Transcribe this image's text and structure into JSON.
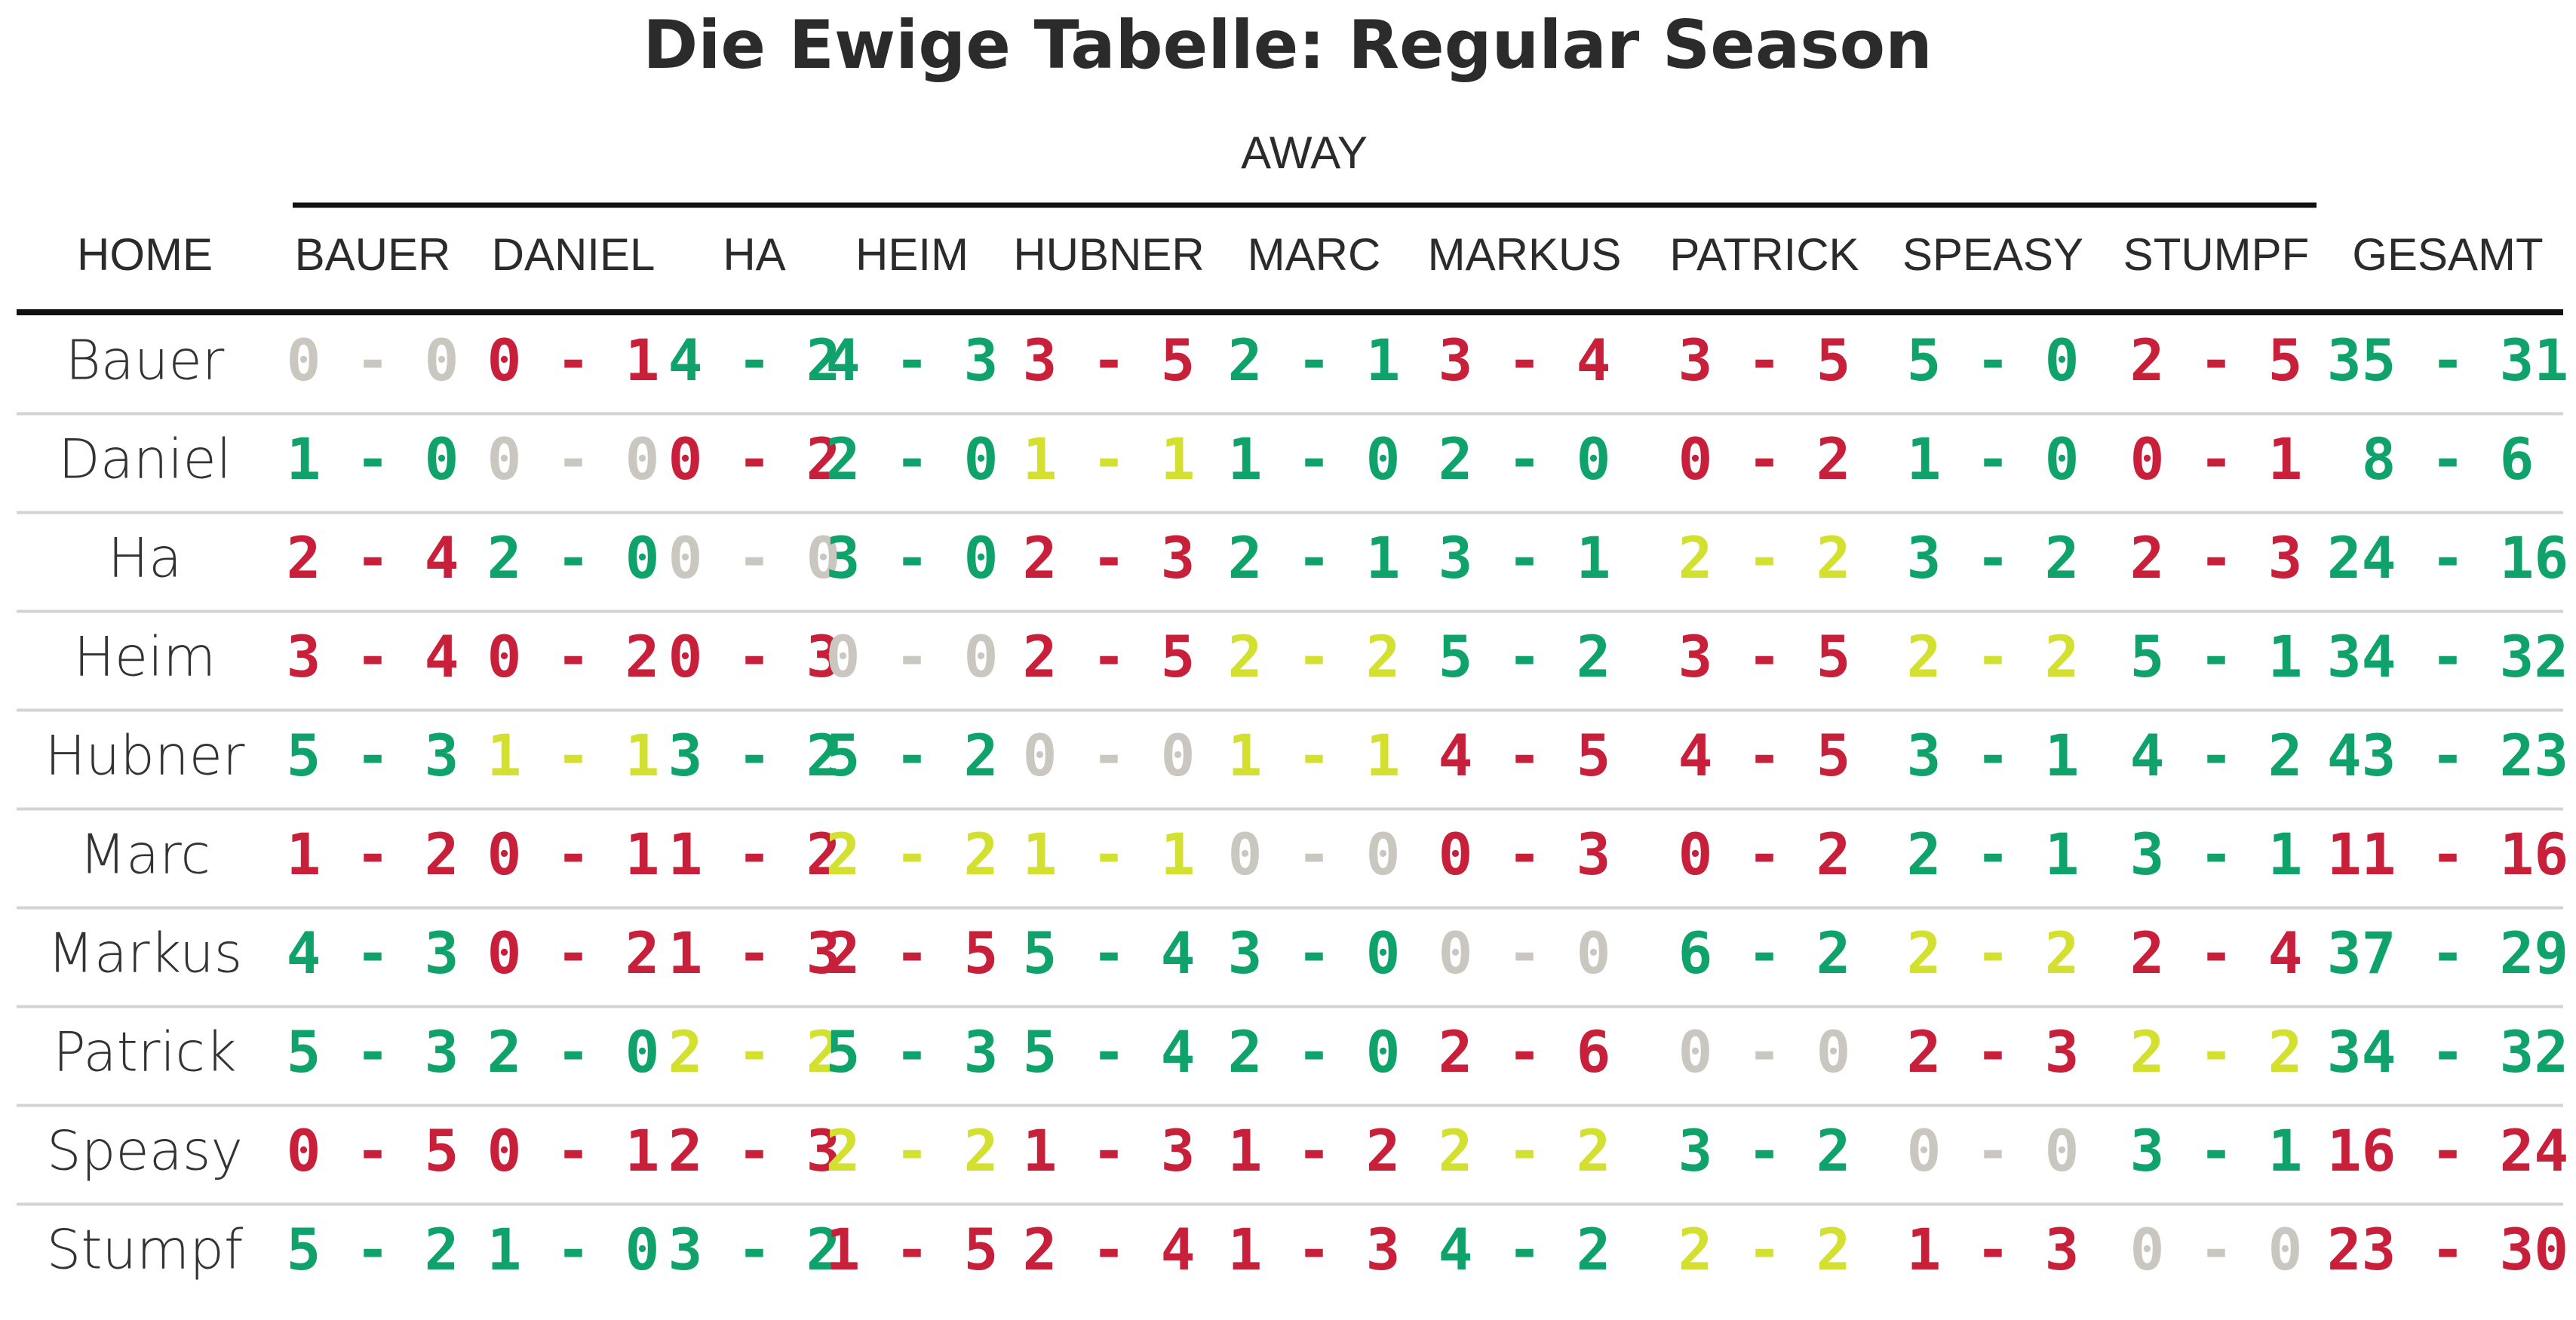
{
  "header": {
    "title": "Die Ewige Tabelle: Regular Season",
    "group_label": "AWAY"
  },
  "colors": {
    "win": "#0fa36b",
    "loss": "#c8203a",
    "draw": "#d4e02f",
    "self": "#c9c7bf"
  },
  "table": {
    "columns": [
      "HOME",
      "BAUER",
      "DANIEL",
      "HA",
      "HEIM",
      "HUBNER",
      "MARC",
      "MARKUS",
      "PATRICK",
      "SPEASY",
      "STUMPF",
      "GESAMT"
    ],
    "rows": [
      [
        "Bauer",
        "0 - 0",
        "0 - 1",
        "4 - 2",
        "4 - 3",
        "3 - 5",
        "2 - 1",
        "3 - 4",
        "3 - 5",
        "5 - 0",
        "2 - 5",
        "35 - 31"
      ],
      [
        "Daniel",
        "1 - 0",
        "0 - 0",
        "0 - 2",
        "2 - 0",
        "1 - 1",
        "1 - 0",
        "2 - 0",
        "0 - 2",
        "1 - 0",
        "0 - 1",
        "8 - 6"
      ],
      [
        "Ha",
        "2 - 4",
        "2 - 0",
        "0 - 0",
        "3 - 0",
        "2 - 3",
        "2 - 1",
        "3 - 1",
        "2 - 2",
        "3 - 2",
        "2 - 3",
        "24 - 16"
      ],
      [
        "Heim",
        "3 - 4",
        "0 - 2",
        "0 - 3",
        "0 - 0",
        "2 - 5",
        "2 - 2",
        "5 - 2",
        "3 - 5",
        "2 - 2",
        "5 - 1",
        "34 - 32"
      ],
      [
        "Hubner",
        "5 - 3",
        "1 - 1",
        "3 - 2",
        "5 - 2",
        "0 - 0",
        "1 - 1",
        "4 - 5",
        "4 - 5",
        "3 - 1",
        "4 - 2",
        "43 - 23"
      ],
      [
        "Marc",
        "1 - 2",
        "0 - 1",
        "1 - 2",
        "2 - 2",
        "1 - 1",
        "0 - 0",
        "0 - 3",
        "0 - 2",
        "2 - 1",
        "3 - 1",
        "11 - 16"
      ],
      [
        "Markus",
        "4 - 3",
        "0 - 2",
        "1 - 3",
        "2 - 5",
        "5 - 4",
        "3 - 0",
        "0 - 0",
        "6 - 2",
        "2 - 2",
        "2 - 4",
        "37 - 29"
      ],
      [
        "Patrick",
        "5 - 3",
        "2 - 0",
        "2 - 2",
        "5 - 3",
        "5 - 4",
        "2 - 0",
        "2 - 6",
        "0 - 0",
        "2 - 3",
        "2 - 2",
        "34 - 32"
      ],
      [
        "Speasy",
        "0 - 5",
        "0 - 1",
        "2 - 3",
        "2 - 2",
        "1 - 3",
        "1 - 2",
        "2 - 2",
        "3 - 2",
        "0 - 0",
        "3 - 1",
        "16 - 24"
      ],
      [
        "Stumpf",
        "5 - 2",
        "1 - 0",
        "3 - 2",
        "1 - 5",
        "2 - 4",
        "1 - 3",
        "4 - 2",
        "2 - 2",
        "1 - 3",
        "0 - 0",
        "23 - 30"
      ]
    ]
  }
}
